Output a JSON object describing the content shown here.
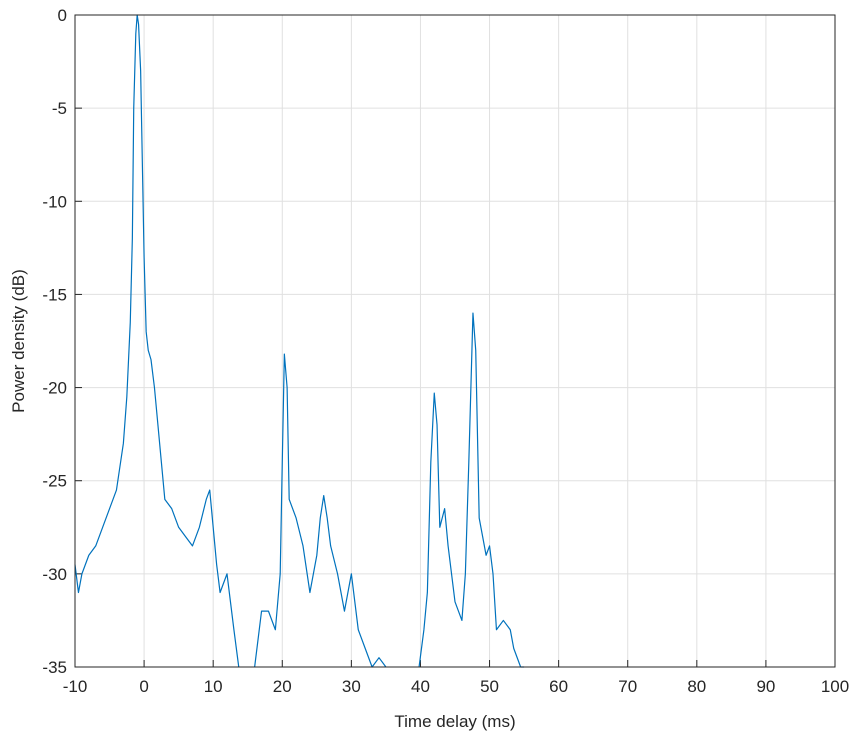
{
  "chart_data": {
    "type": "line",
    "xlabel": "Time delay (ms)",
    "ylabel": "Power density (dB)",
    "x": [
      -10,
      -9.5,
      -9,
      -8,
      -7,
      -6,
      -5,
      -4,
      -3,
      -2.5,
      -2,
      -1.7,
      -1.5,
      -1.2,
      -1,
      -0.8,
      -0.5,
      -0.2,
      0,
      0.3,
      0.6,
      1,
      1.5,
      2,
      2.5,
      3,
      4,
      5,
      6,
      7,
      8,
      9,
      9.5,
      10,
      10.5,
      11,
      12,
      13,
      13.7,
      14.8,
      16,
      17,
      18,
      19,
      19.7,
      20,
      20.3,
      20.7,
      21,
      22,
      23,
      24,
      25,
      25.5,
      26,
      26.5,
      27,
      28,
      29,
      30,
      31,
      32,
      33,
      34,
      35,
      37.5,
      39.8,
      40.5,
      41,
      41.5,
      42,
      42.4,
      42.8,
      43.5,
      44,
      45,
      46,
      46.5,
      47,
      47.6,
      48,
      48.5,
      49,
      49.5,
      50,
      50.5,
      51,
      52,
      53,
      53.5,
      54.5,
      55
    ],
    "series": [
      {
        "color": "#0072bd",
        "values": [
          -29.5,
          -31,
          -30,
          -29,
          -28.5,
          -27.5,
          -26.5,
          -25.5,
          -23,
          -20.5,
          -16.5,
          -12,
          -5,
          -1,
          0,
          -0.5,
          -3,
          -9,
          -13,
          -17,
          -18,
          -18.5,
          -20,
          -22,
          -24,
          -26,
          -26.5,
          -27.5,
          -28,
          -28.5,
          -27.5,
          -26,
          -25.5,
          -27.5,
          -29.5,
          -31,
          -30,
          -33,
          -35,
          null,
          -35,
          -32,
          -32,
          -33,
          -30,
          -24,
          -18.2,
          -20,
          -26,
          -27,
          -28.5,
          -31,
          -29,
          -27,
          -25.8,
          -27,
          -28.5,
          -30,
          -32,
          -30,
          -33,
          -34,
          -35,
          -34.5,
          -35,
          null,
          -35,
          -33,
          -31,
          -24,
          -20.3,
          -22,
          -27.5,
          -26.5,
          -28.5,
          -31.5,
          -32.5,
          -30,
          -24,
          -16,
          -18,
          -27,
          -28,
          -29,
          -28.5,
          -30,
          -33,
          -32.5,
          -33,
          -34,
          -35,
          -35
        ]
      }
    ],
    "xlim": [
      -10,
      100
    ],
    "xticks": [
      -10,
      0,
      10,
      20,
      30,
      40,
      50,
      60,
      70,
      80,
      90,
      100
    ],
    "ylim": [
      -35,
      0
    ],
    "yticks": [
      -35,
      -30,
      -25,
      -20,
      -15,
      -10,
      -5,
      0
    ],
    "grid": true
  }
}
